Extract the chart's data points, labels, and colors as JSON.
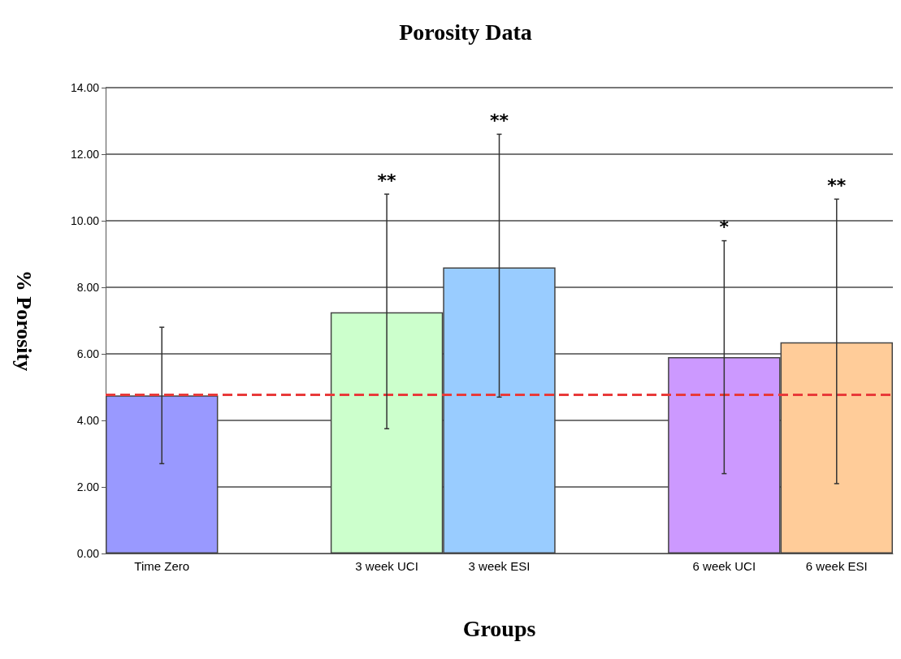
{
  "chart_data": {
    "type": "bar",
    "title": "Porosity Data",
    "xlabel": "Groups",
    "ylabel": "% Porosity",
    "categories": [
      "Time Zero",
      null,
      "3 week UCI",
      "3 week ESI",
      null,
      "6 week UCI",
      "6 week ESI"
    ],
    "values": [
      4.75,
      null,
      7.25,
      8.6,
      null,
      5.9,
      6.35
    ],
    "colors": [
      "#9999ff",
      null,
      "#ccffcc",
      "#99ccff",
      null,
      "#cc99ff",
      "#ffcc99"
    ],
    "errors": [
      [
        2.7,
        6.8
      ],
      null,
      [
        3.75,
        10.8
      ],
      [
        4.7,
        12.6
      ],
      null,
      [
        2.4,
        9.4
      ],
      [
        2.1,
        10.65
      ]
    ],
    "ylim": [
      0,
      14
    ],
    "yticks": [
      {
        "value": 0,
        "label": "0.00"
      },
      {
        "value": 2,
        "label": "2.00"
      },
      {
        "value": 4,
        "label": "4.00"
      },
      {
        "value": 6,
        "label": "6.00"
      },
      {
        "value": 8,
        "label": "8.00"
      },
      {
        "value": 10,
        "label": "10.00"
      },
      {
        "value": 12,
        "label": "12.00"
      },
      {
        "value": 14,
        "label": "14.00"
      }
    ],
    "grid": "y",
    "ref_lines": [
      {
        "axis": "y",
        "value": 4.78,
        "color": "#e83a3a",
        "line_style": "dashed"
      }
    ],
    "annotations": [
      {
        "text": "**",
        "x": "3 week UCI",
        "y": 10.8
      },
      {
        "text": "**",
        "x": "3 week ESI",
        "y": 12.6
      },
      {
        "text": "*",
        "x": "6 week UCI",
        "y": 9.4
      },
      {
        "text": "**",
        "x": "6 week ESI",
        "y": 10.65
      }
    ]
  }
}
